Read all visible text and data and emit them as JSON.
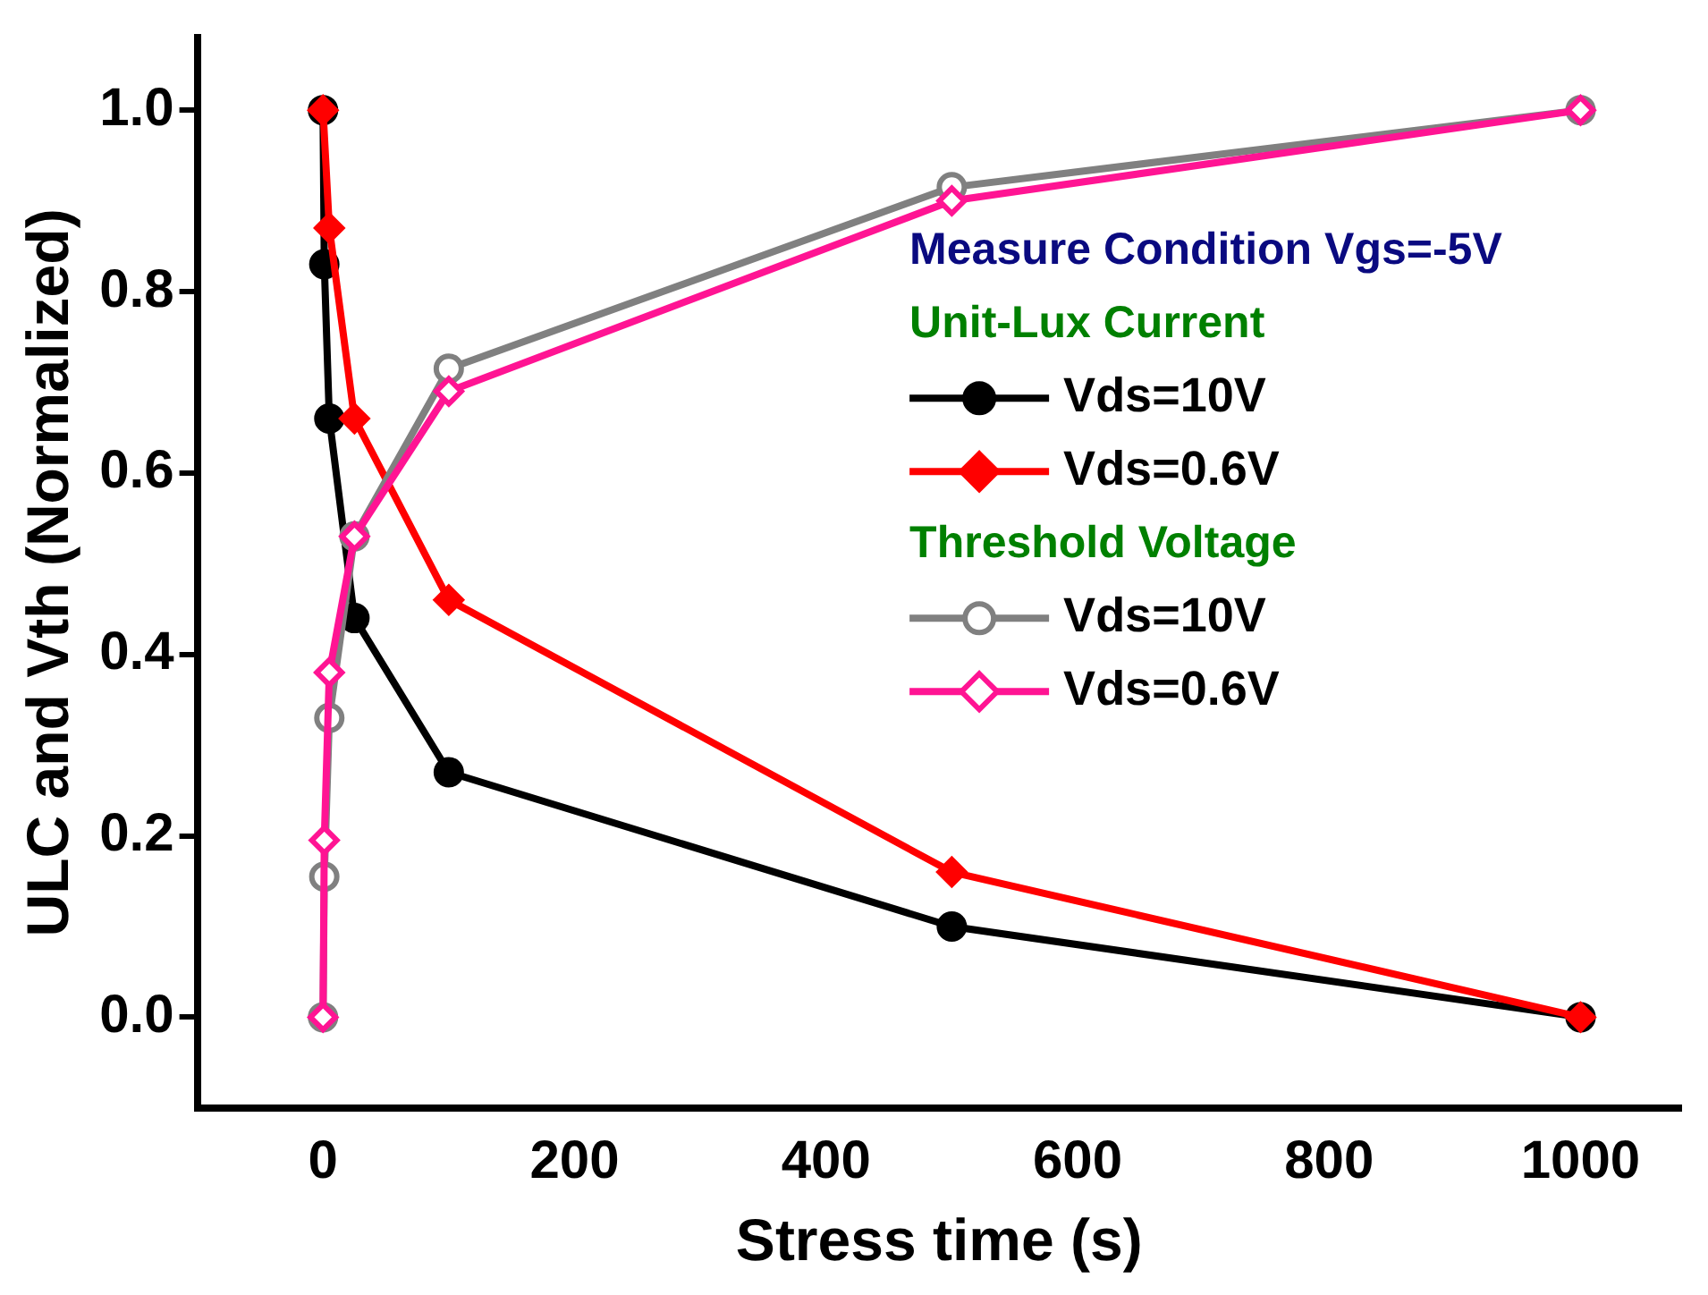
{
  "chart_data": {
    "type": "line",
    "xlabel": "Stress time (s)",
    "ylabel": "ULC and Vth (Normalized)",
    "legend_title": "Measure Condition Vgs=-5V",
    "annotations": [
      "Unit-Lux Current",
      "Threshold Voltage"
    ],
    "xlim": [
      -100,
      1080
    ],
    "xticks": [
      0,
      200,
      400,
      600,
      800,
      1000
    ],
    "ylim": [
      -0.1,
      1.08
    ],
    "yticks": [
      {
        "value": 0,
        "label": "0.0"
      },
      0.2,
      0.4,
      0.6,
      0.8,
      {
        "value": 1,
        "label": "1.0"
      }
    ],
    "grid": false,
    "legend": "right",
    "line_style": "solid",
    "series": [
      {
        "name": "Vds=10V",
        "color": "#000000",
        "marker": "circle",
        "x": [
          0,
          1,
          5,
          25,
          100,
          500,
          1000
        ],
        "values": [
          1.0,
          0.83,
          0.66,
          0.44,
          0.27,
          0.1,
          0.0
        ]
      },
      {
        "name": "Vds=0.6V",
        "color": "#ff0000",
        "marker": "diamond",
        "x": [
          0,
          5,
          25,
          100,
          500,
          1000
        ],
        "values": [
          1.0,
          0.87,
          0.66,
          0.46,
          0.16,
          0.0
        ]
      },
      {
        "name": "Vds=10V",
        "color": "#808080",
        "marker": "circle",
        "x": [
          0,
          1,
          5,
          25,
          100,
          500,
          1000
        ],
        "values": [
          0.0,
          0.155,
          0.33,
          0.53,
          0.715,
          0.915,
          1.0
        ]
      },
      {
        "name": "Vds=0.6V",
        "color": "#ff1493",
        "marker": "diamond",
        "x": [
          0,
          1,
          5,
          25,
          100,
          500,
          1000
        ],
        "values": [
          0.0,
          0.195,
          0.38,
          0.53,
          0.69,
          0.9,
          1.0
        ]
      }
    ]
  }
}
